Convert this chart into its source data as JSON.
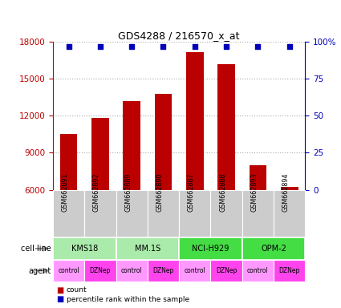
{
  "title": "GDS4288 / 216570_x_at",
  "samples": [
    "GSM662891",
    "GSM662892",
    "GSM662889",
    "GSM662890",
    "GSM662887",
    "GSM662888",
    "GSM662893",
    "GSM662894"
  ],
  "counts": [
    10500,
    11800,
    13200,
    13800,
    17200,
    16200,
    8000,
    6200
  ],
  "percentile_ranks": [
    99,
    99,
    99,
    99,
    99,
    99,
    99,
    99
  ],
  "ylim_left": [
    6000,
    18000
  ],
  "ylim_right": [
    0,
    100
  ],
  "yticks_left": [
    6000,
    9000,
    12000,
    15000,
    18000
  ],
  "yticks_right": [
    0,
    25,
    50,
    75,
    100
  ],
  "cell_line_defs": [
    {
      "label": "KMS18",
      "start": 0,
      "end": 2,
      "color": "#AAEAAA"
    },
    {
      "label": "MM.1S",
      "start": 2,
      "end": 4,
      "color": "#AAEAAA"
    },
    {
      "label": "NCI-H929",
      "start": 4,
      "end": 6,
      "color": "#44DD44"
    },
    {
      "label": "OPM-2",
      "start": 6,
      "end": 8,
      "color": "#44DD44"
    }
  ],
  "agents": [
    "control",
    "DZNep",
    "control",
    "DZNep",
    "control",
    "DZNep",
    "control",
    "DZNep"
  ],
  "agent_color_even": "#FF99FF",
  "agent_color_odd": "#FF44EE",
  "bar_color": "#BB0000",
  "dot_color": "#0000BB",
  "sample_bg_color": "#CCCCCC",
  "legend_count_color": "#BB0000",
  "legend_pct_color": "#0000BB",
  "left_axis_color": "#BB0000",
  "right_axis_color": "#0000BB",
  "grid_color": "#888888"
}
